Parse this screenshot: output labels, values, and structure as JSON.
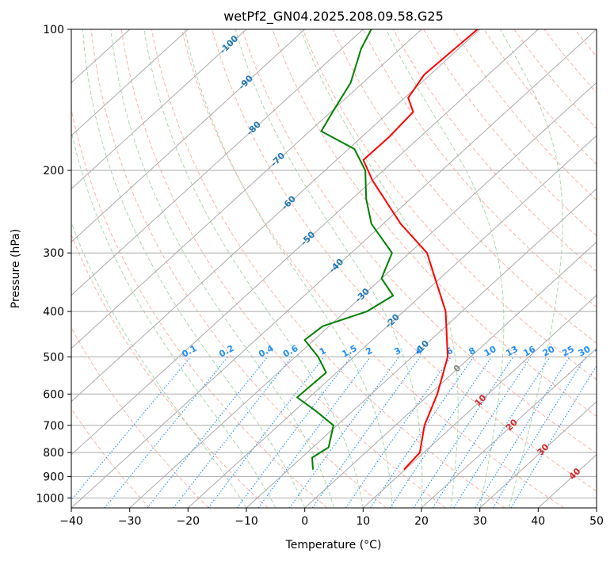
{
  "chart_data": {
    "type": "skew-t",
    "title": "wetPf2_GN04.2025.208.09.58.G25",
    "xlabel": "Temperature (°C)",
    "ylabel": "Pressure (hPa)",
    "xlim": [
      -40,
      50
    ],
    "ylim": [
      1050,
      100
    ],
    "y_scale": "log",
    "grid": true,
    "x_ticks": [
      -40,
      -30,
      -20,
      -10,
      0,
      10,
      20,
      30,
      40,
      50
    ],
    "y_ticks": [
      1000,
      900,
      800,
      700,
      600,
      500,
      400,
      300,
      200,
      100
    ],
    "isotherm_step": 10,
    "dry_adiabats": [
      -30,
      -20,
      -10,
      0,
      10,
      20,
      30,
      40,
      50,
      60,
      70,
      80,
      90,
      100,
      110,
      120,
      130,
      140,
      150,
      160,
      170,
      180,
      190,
      200,
      220,
      240
    ],
    "moist_adiabats": [
      -10,
      -5,
      0,
      5,
      10,
      15,
      20,
      25,
      30,
      35
    ],
    "mixing_ratio_lines": [
      0.1,
      0.2,
      0.4,
      0.6,
      1,
      1.5,
      2,
      3,
      4,
      6,
      8,
      10,
      13,
      16,
      20,
      25,
      30,
      36
    ],
    "mixing_ratio_label_pressure": 500,
    "isotherm_labels_cold": [
      {
        "text": "-100",
        "t": -100,
        "p": 108
      },
      {
        "text": "-90",
        "t": -90,
        "p": 130
      },
      {
        "text": "-80",
        "t": -80,
        "p": 163
      },
      {
        "text": "-70",
        "t": -70,
        "p": 190
      },
      {
        "text": "-60",
        "t": -60,
        "p": 235
      },
      {
        "text": "-50",
        "t": -50,
        "p": 280
      },
      {
        "text": "-40",
        "t": -40,
        "p": 320
      },
      {
        "text": "-30",
        "t": -30,
        "p": 370
      },
      {
        "text": "-20",
        "t": -20,
        "p": 420
      },
      {
        "text": "-10",
        "t": -10,
        "p": 478
      }
    ],
    "isotherm_labels_warm": [
      {
        "text": "0",
        "t": 0,
        "p": 530
      },
      {
        "text": "10",
        "t": 10,
        "p": 620
      },
      {
        "text": "20",
        "t": 20,
        "p": 700
      },
      {
        "text": "30",
        "t": 30,
        "p": 790
      },
      {
        "text": "40",
        "t": 40,
        "p": 890
      }
    ],
    "series": [
      {
        "name": "Temperature",
        "color": "#ff0000",
        "points": [
          {
            "p": 870,
            "t": 9.8
          },
          {
            "p": 800,
            "t": 9.3
          },
          {
            "p": 700,
            "t": 5.0
          },
          {
            "p": 600,
            "t": 1.3
          },
          {
            "p": 500,
            "t": -3.9
          },
          {
            "p": 400,
            "t": -12.8
          },
          {
            "p": 300,
            "t": -27.0
          },
          {
            "p": 260,
            "t": -37.0
          },
          {
            "p": 210,
            "t": -50.0
          },
          {
            "p": 190,
            "t": -55.4
          },
          {
            "p": 170,
            "t": -55.3
          },
          {
            "p": 150,
            "t": -55.9
          },
          {
            "p": 140,
            "t": -59.4
          },
          {
            "p": 125,
            "t": -61.0
          },
          {
            "p": 100,
            "t": -60.4
          }
        ]
      },
      {
        "name": "Dew Point",
        "color": "#008000",
        "points": [
          {
            "p": 870,
            "t": -5.8
          },
          {
            "p": 820,
            "t": -8.2
          },
          {
            "p": 780,
            "t": -7.3
          },
          {
            "p": 700,
            "t": -10.6
          },
          {
            "p": 650,
            "t": -16.6
          },
          {
            "p": 610,
            "t": -22.1
          },
          {
            "p": 540,
            "t": -21.8
          },
          {
            "p": 500,
            "t": -26.1
          },
          {
            "p": 460,
            "t": -31.6
          },
          {
            "p": 430,
            "t": -31.1
          },
          {
            "p": 400,
            "t": -26.3
          },
          {
            "p": 370,
            "t": -24.8
          },
          {
            "p": 340,
            "t": -30.0
          },
          {
            "p": 300,
            "t": -33.0
          },
          {
            "p": 260,
            "t": -42.0
          },
          {
            "p": 230,
            "t": -47.6
          },
          {
            "p": 200,
            "t": -53.1
          },
          {
            "p": 180,
            "t": -59.0
          },
          {
            "p": 165,
            "t": -68.0
          },
          {
            "p": 150,
            "t": -69.7
          },
          {
            "p": 130,
            "t": -72.1
          },
          {
            "p": 110,
            "t": -76.7
          },
          {
            "p": 100,
            "t": -78.6
          }
        ]
      }
    ],
    "colors": {
      "isotherm": "#aaaaaa",
      "isobar": "#aaaaaa",
      "dry_adiabat": "#ffb2a0",
      "moist_adiabat": "#a8d8a8",
      "mixing_ratio": "#1e90ff",
      "cold_label": "#1f77b4",
      "warm_label": "#d62728",
      "zero_label": "#888888",
      "mixing_label": "#1e90ff",
      "outer_curve": "#dcc8b0"
    }
  }
}
